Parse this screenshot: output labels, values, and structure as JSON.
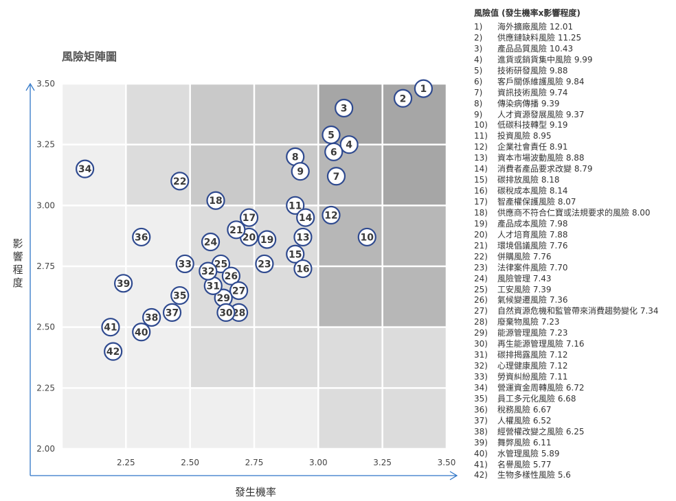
{
  "chart_data": {
    "type": "scatter",
    "title": "風險矩陣圖",
    "xlabel": "發生機率",
    "ylabel": "影響程度",
    "xlim": [
      2.0,
      3.5
    ],
    "ylim": [
      2.0,
      3.5
    ],
    "xticks": [
      "2.25",
      "2.50",
      "2.75",
      "3.00",
      "3.25",
      "3.50"
    ],
    "yticks": [
      "2.00",
      "2.25",
      "2.50",
      "2.75",
      "3.00",
      "3.25",
      "3.50"
    ],
    "points": [
      {
        "label": "1",
        "x": 3.41,
        "y": 3.48
      },
      {
        "label": "2",
        "x": 3.33,
        "y": 3.44
      },
      {
        "label": "3",
        "x": 3.1,
        "y": 3.4
      },
      {
        "label": "4",
        "x": 3.12,
        "y": 3.25
      },
      {
        "label": "5",
        "x": 3.05,
        "y": 3.29
      },
      {
        "label": "6",
        "x": 3.06,
        "y": 3.22
      },
      {
        "label": "7",
        "x": 3.07,
        "y": 3.12
      },
      {
        "label": "8",
        "x": 2.91,
        "y": 3.2
      },
      {
        "label": "9",
        "x": 2.93,
        "y": 3.14
      },
      {
        "label": "10",
        "x": 3.19,
        "y": 2.87
      },
      {
        "label": "11",
        "x": 2.91,
        "y": 3.0
      },
      {
        "label": "12",
        "x": 3.05,
        "y": 2.96
      },
      {
        "label": "13",
        "x": 2.94,
        "y": 2.87
      },
      {
        "label": "14",
        "x": 2.95,
        "y": 2.95
      },
      {
        "label": "15",
        "x": 2.91,
        "y": 2.8
      },
      {
        "label": "16",
        "x": 2.94,
        "y": 2.74
      },
      {
        "label": "17",
        "x": 2.73,
        "y": 2.95
      },
      {
        "label": "18",
        "x": 2.6,
        "y": 3.02
      },
      {
        "label": "19",
        "x": 2.8,
        "y": 2.86
      },
      {
        "label": "20",
        "x": 2.73,
        "y": 2.87
      },
      {
        "label": "21",
        "x": 2.68,
        "y": 2.9
      },
      {
        "label": "22",
        "x": 2.46,
        "y": 3.1
      },
      {
        "label": "23",
        "x": 2.79,
        "y": 2.76
      },
      {
        "label": "24",
        "x": 2.58,
        "y": 2.85
      },
      {
        "label": "25",
        "x": 2.62,
        "y": 2.76
      },
      {
        "label": "26",
        "x": 2.66,
        "y": 2.71
      },
      {
        "label": "27",
        "x": 2.69,
        "y": 2.65
      },
      {
        "label": "28",
        "x": 2.69,
        "y": 2.56
      },
      {
        "label": "29",
        "x": 2.63,
        "y": 2.62
      },
      {
        "label": "30",
        "x": 2.64,
        "y": 2.56
      },
      {
        "label": "31",
        "x": 2.59,
        "y": 2.67
      },
      {
        "label": "32",
        "x": 2.57,
        "y": 2.73
      },
      {
        "label": "33",
        "x": 2.48,
        "y": 2.76
      },
      {
        "label": "34",
        "x": 2.09,
        "y": 3.15
      },
      {
        "label": "35",
        "x": 2.46,
        "y": 2.63
      },
      {
        "label": "36",
        "x": 2.31,
        "y": 2.87
      },
      {
        "label": "37",
        "x": 2.43,
        "y": 2.56
      },
      {
        "label": "38",
        "x": 2.35,
        "y": 2.54
      },
      {
        "label": "39",
        "x": 2.24,
        "y": 2.68
      },
      {
        "label": "40",
        "x": 2.31,
        "y": 2.48
      },
      {
        "label": "41",
        "x": 2.19,
        "y": 2.5
      },
      {
        "label": "42",
        "x": 2.2,
        "y": 2.4
      }
    ],
    "zone_colors": {
      "lightest": "#efefef",
      "light": "#dcdcdc",
      "medium": "#c9c9c9",
      "dark": "#b7b7b7",
      "darkest": "#a6a6a6"
    },
    "bubble_stroke": "#2f4a8f",
    "axis_color": "#2e75c7"
  },
  "legend": {
    "title": "風險值 (發生機率x影響程度)",
    "items": [
      {
        "num": "1)",
        "text": "海外擴廠風險 12.01"
      },
      {
        "num": "2)",
        "text": "供應鏈缺料風險 11.25"
      },
      {
        "num": "3)",
        "text": "產品品質風險 10.43"
      },
      {
        "num": "4)",
        "text": "進貨或銷貨集中風險 9.99"
      },
      {
        "num": "5)",
        "text": "技術研發風險 9.88"
      },
      {
        "num": "6)",
        "text": "客戶關係維護風險 9.84"
      },
      {
        "num": "7)",
        "text": "資訊技術風險 9.74"
      },
      {
        "num": "8)",
        "text": "傳染病傳播 9.39"
      },
      {
        "num": "9)",
        "text": "人才資源發展風險 9.37"
      },
      {
        "num": "10)",
        "text": "低碳科技轉型 9.19"
      },
      {
        "num": "11)",
        "text": "投資風險 8.95"
      },
      {
        "num": "12)",
        "text": "企業社會責任 8.91"
      },
      {
        "num": "13)",
        "text": "資本市場波動風險 8.88"
      },
      {
        "num": "14)",
        "text": "消費者產品要求改變 8.79"
      },
      {
        "num": "15)",
        "text": "碳排放風險 8.18"
      },
      {
        "num": "16)",
        "text": "碳稅成本風險 8.14"
      },
      {
        "num": "17)",
        "text": "智產權保護風險 8.07"
      },
      {
        "num": "18)",
        "text": "供應商不符合仁寶或法規要求的風險 8.00"
      },
      {
        "num": "19)",
        "text": "產品成本風險 7.98"
      },
      {
        "num": "20)",
        "text": "人才培育風險 7.88"
      },
      {
        "num": "21)",
        "text": "環境倡議風險 7.76"
      },
      {
        "num": "22)",
        "text": "併購風險 7.76"
      },
      {
        "num": "23)",
        "text": "法律案件風險 7.70"
      },
      {
        "num": "24)",
        "text": "風險管理 7.43"
      },
      {
        "num": "25)",
        "text": "工安風險 7.39"
      },
      {
        "num": "26)",
        "text": "氣候變遷風險 7.36"
      },
      {
        "num": "27)",
        "text": "自然資源危機和監管帶來消費趨勢變化 7.34"
      },
      {
        "num": "28)",
        "text": "廢棄物風險 7.23"
      },
      {
        "num": "29)",
        "text": "能源管理風險 7.23"
      },
      {
        "num": "30)",
        "text": "再生能源管理風險 7.16"
      },
      {
        "num": "31)",
        "text": "碳排揭露風險 7.12"
      },
      {
        "num": "32)",
        "text": "心理健康風險 7.12"
      },
      {
        "num": "33)",
        "text": "勞資糾紛風險 7.11"
      },
      {
        "num": "34)",
        "text": "營運資金周轉風險 6.72"
      },
      {
        "num": "35)",
        "text": "員工多元化風險 6.68"
      },
      {
        "num": "36)",
        "text": "稅務風險 6.67"
      },
      {
        "num": "37)",
        "text": "人權風險 6.52"
      },
      {
        "num": "38)",
        "text": "經營權改變之風險 6.25"
      },
      {
        "num": "39)",
        "text": "舞弊風險 6.11"
      },
      {
        "num": "40)",
        "text": "水管理風險 5.89"
      },
      {
        "num": "41)",
        "text": "名譽風險 5.77"
      },
      {
        "num": "42)",
        "text": "生物多樣性風險 5.6"
      }
    ]
  }
}
